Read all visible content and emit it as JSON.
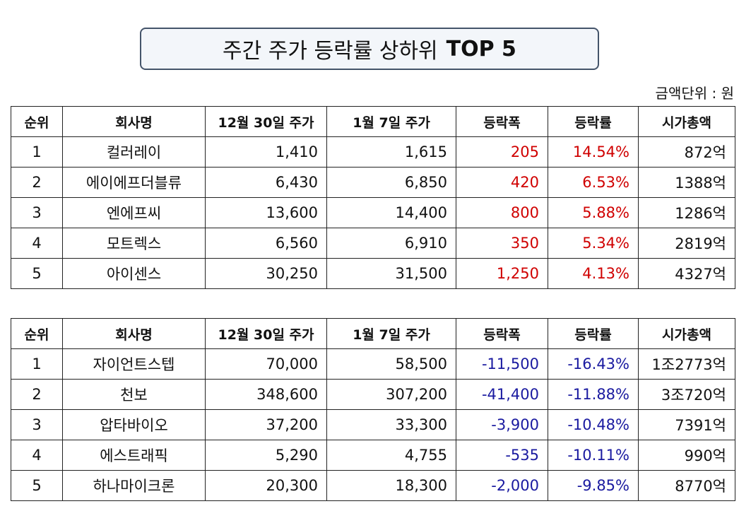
{
  "title": {
    "text": "주간 주가 등락률 상하위",
    "emphasis": "TOP 5"
  },
  "unit_note": "금액단위 : 원",
  "tables": [
    {
      "header": [
        "순위",
        "회사명",
        "12월 30일 주가",
        "1월 7일 주가",
        "등락폭",
        "등락률",
        "시가총액"
      ],
      "change_color": "#d00000",
      "rows": [
        [
          "1",
          "컬러레이",
          "1,410",
          "1,615",
          "205",
          "14.54%",
          "872억"
        ],
        [
          "2",
          "에이에프더블류",
          "6,430",
          "6,850",
          "420",
          "6.53%",
          "1388억"
        ],
        [
          "3",
          "엔에프씨",
          "13,600",
          "14,400",
          "800",
          "5.88%",
          "1286억"
        ],
        [
          "4",
          "모트렉스",
          "6,560",
          "6,910",
          "350",
          "5.34%",
          "2819억"
        ],
        [
          "5",
          "아이센스",
          "30,250",
          "31,500",
          "1,250",
          "4.13%",
          "4327억"
        ]
      ]
    },
    {
      "header": [
        "순위",
        "회사명",
        "12월 30일 주가",
        "1월 7일 주가",
        "등락폭",
        "등락률",
        "시가총액"
      ],
      "change_color": "#1a1aa0",
      "rows": [
        [
          "1",
          "자이언트스텝",
          "70,000",
          "58,500",
          "-11,500",
          "-16.43%",
          "1조2773억"
        ],
        [
          "2",
          "천보",
          "348,600",
          "307,200",
          "-41,400",
          "-11.88%",
          "3조720억"
        ],
        [
          "3",
          "압타바이오",
          "37,200",
          "33,300",
          "-3,900",
          "-10.48%",
          "7391억"
        ],
        [
          "4",
          "에스트래픽",
          "5,290",
          "4,755",
          "-535",
          "-10.11%",
          "990억"
        ],
        [
          "5",
          "하나마이크론",
          "20,300",
          "18,300",
          "-2,000",
          "-9.85%",
          "8770억"
        ]
      ]
    }
  ]
}
